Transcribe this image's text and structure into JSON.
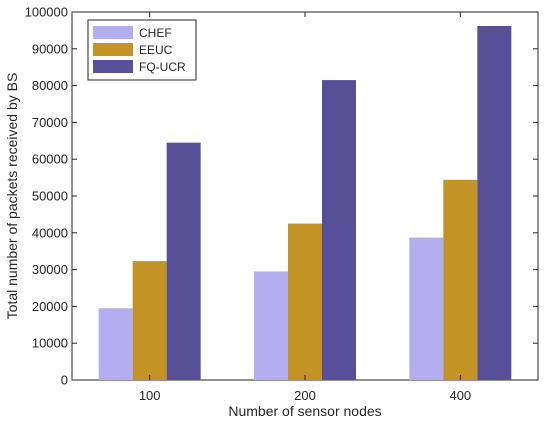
{
  "chart_data": {
    "type": "bar",
    "title": "",
    "xlabel": "Number of sensor nodes",
    "ylabel": "Total number of packets received by BS",
    "categories": [
      "100",
      "200",
      "400"
    ],
    "series": [
      {
        "name": "CHEF",
        "values": [
          19500,
          29500,
          38700
        ],
        "color": "#b4aef0"
      },
      {
        "name": "EEUC",
        "values": [
          32300,
          42500,
          54400
        ],
        "color": "#c49326"
      },
      {
        "name": "FQ-UCR",
        "values": [
          64500,
          81500,
          96200
        ],
        "color": "#594f99"
      }
    ],
    "ylim": [
      0,
      100000
    ],
    "yticks": [
      0,
      10000,
      20000,
      30000,
      40000,
      50000,
      60000,
      70000,
      80000,
      90000,
      100000
    ],
    "legend_position": "top-left",
    "grid": false
  }
}
